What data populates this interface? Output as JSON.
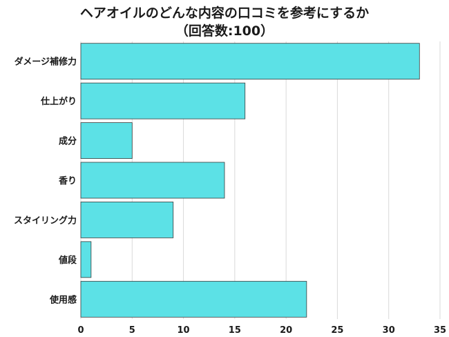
{
  "chart_data": {
    "type": "bar",
    "orientation": "horizontal",
    "title": "ヘアオイルのどんな内容の口コミを参考にするか",
    "subtitle": "（回答数:100）",
    "categories": [
      "ダメージ補修力",
      "仕上がり",
      "成分",
      "香り",
      "スタイリング力",
      "値段",
      "使用感"
    ],
    "values": [
      33,
      16,
      5,
      14,
      9,
      1,
      22
    ],
    "xlim": [
      0,
      35
    ],
    "xticks": [
      0,
      5,
      10,
      15,
      20,
      25,
      30,
      35
    ],
    "xlabel": "",
    "ylabel": "",
    "grid": true,
    "bar_color": "#5ce1e6",
    "grid_color": "#d9d9d9"
  }
}
